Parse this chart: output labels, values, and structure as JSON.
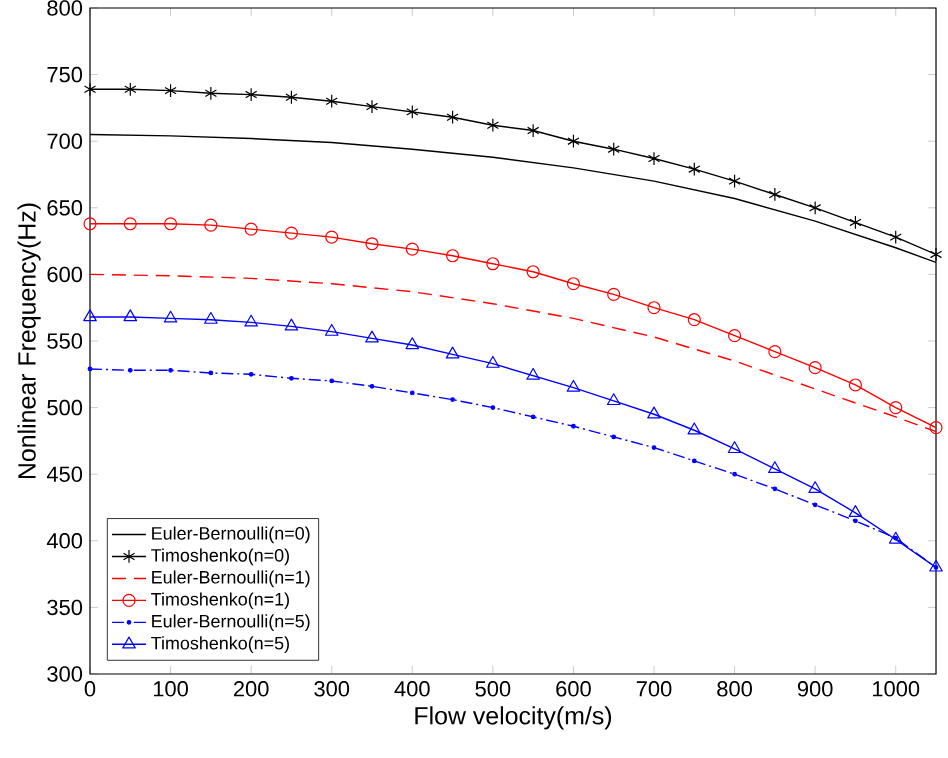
{
  "chart_data": {
    "type": "line",
    "xlabel": "Flow velocity(m/s)",
    "ylabel": "Nonlinear Frequency(Hz)",
    "xlim": [
      0,
      1050
    ],
    "ylim": [
      300,
      800
    ],
    "xticks": [
      0,
      100,
      200,
      300,
      400,
      500,
      600,
      700,
      800,
      900,
      1000
    ],
    "yticks": [
      300,
      350,
      400,
      450,
      500,
      550,
      600,
      650,
      700,
      750,
      800
    ],
    "grid": false,
    "legend": "bottom left",
    "series": [
      {
        "name": "Euler-Bernoulli(n=0)",
        "color": "#000000",
        "line_style": "solid",
        "marker": "none",
        "x": [
          0,
          100,
          200,
          300,
          400,
          500,
          600,
          700,
          800,
          900,
          1000,
          1050
        ],
        "values": [
          705,
          704,
          702,
          699,
          694,
          688,
          680,
          670,
          657,
          640,
          620,
          609
        ]
      },
      {
        "name": "Timoshenko(n=0)",
        "color": "#000000",
        "line_style": "solid",
        "marker": "cross",
        "x": [
          0,
          50,
          100,
          150,
          200,
          250,
          300,
          350,
          400,
          450,
          500,
          550,
          600,
          650,
          700,
          750,
          800,
          850,
          900,
          950,
          1000,
          1050
        ],
        "values": [
          739,
          739,
          738,
          736,
          735,
          733,
          730,
          726,
          722,
          718,
          712,
          708,
          700,
          694,
          687,
          679,
          670,
          660,
          650,
          639,
          628,
          615
        ]
      },
      {
        "name": "Euler-Bernoulli(n=1)",
        "color": "#ff0000",
        "line_style": "dashed",
        "marker": "none",
        "x": [
          0,
          100,
          200,
          300,
          400,
          500,
          600,
          700,
          800,
          900,
          1000,
          1050
        ],
        "values": [
          600,
          599,
          597,
          593,
          587,
          578,
          567,
          553,
          535,
          514,
          493,
          482
        ]
      },
      {
        "name": "Timoshenko(n=1)",
        "color": "#ff0000",
        "line_style": "solid",
        "marker": "circle",
        "x": [
          0,
          50,
          100,
          150,
          200,
          250,
          300,
          350,
          400,
          450,
          500,
          550,
          600,
          650,
          700,
          750,
          800,
          850,
          900,
          950,
          1000,
          1050
        ],
        "values": [
          638,
          638,
          638,
          637,
          634,
          631,
          628,
          623,
          619,
          614,
          608,
          602,
          593,
          585,
          575,
          566,
          554,
          542,
          530,
          517,
          500,
          485
        ]
      },
      {
        "name": "Euler-Bernoulli(n=5)",
        "color": "#0000ff",
        "line_style": "dashdot",
        "marker": "dot",
        "x": [
          0,
          50,
          100,
          150,
          200,
          250,
          300,
          350,
          400,
          450,
          500,
          550,
          600,
          650,
          700,
          750,
          800,
          850,
          900,
          950,
          1000,
          1050
        ],
        "values": [
          529,
          528,
          528,
          526,
          525,
          522,
          520,
          516,
          511,
          506,
          500,
          493,
          486,
          478,
          470,
          460,
          450,
          439,
          427,
          415,
          402,
          380
        ]
      },
      {
        "name": "Timoshenko(n=5)",
        "color": "#0000ff",
        "line_style": "solid",
        "marker": "triangle",
        "x": [
          0,
          50,
          100,
          150,
          200,
          250,
          300,
          350,
          400,
          450,
          500,
          550,
          600,
          650,
          700,
          750,
          800,
          850,
          900,
          950,
          1000,
          1050
        ],
        "values": [
          568,
          568,
          567,
          566,
          564,
          561,
          557,
          552,
          547,
          540,
          533,
          524,
          515,
          505,
          495,
          483,
          469,
          454,
          439,
          421,
          401,
          380
        ]
      }
    ]
  }
}
